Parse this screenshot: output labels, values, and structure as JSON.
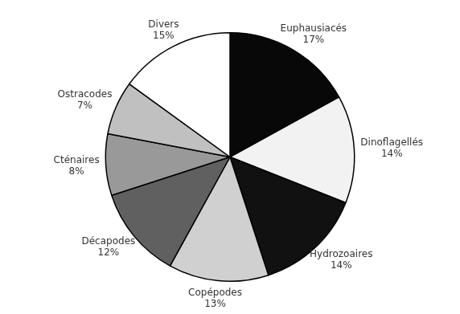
{
  "chart_data": {
    "type": "pie",
    "categories": [
      "Euphausiacés",
      "Dinoflagellés",
      "Hydrozoaires",
      "Copépodes",
      "Décapodes",
      "Cténaires",
      "Ostracodes",
      "Divers"
    ],
    "values": [
      17,
      14,
      14,
      13,
      12,
      8,
      7,
      15
    ],
    "value_labels": [
      "17%",
      "14%",
      "14%",
      "13%",
      "12%",
      "8%",
      "7%",
      "15%"
    ],
    "colors": [
      "#080808",
      "#f2f2f2",
      "#111111",
      "#d0d0d0",
      "#606060",
      "#999999",
      "#c0c0c0",
      "#ffffff"
    ],
    "data_labels": true
  }
}
